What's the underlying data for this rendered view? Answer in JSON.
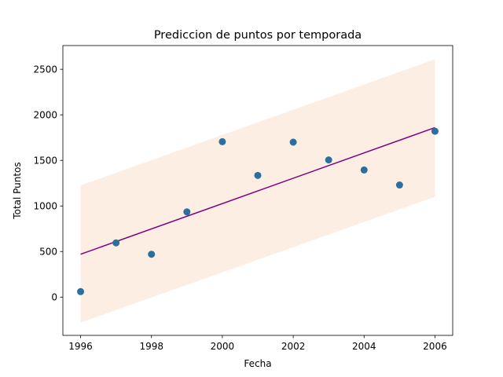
{
  "chart_data": {
    "type": "scatter",
    "title": "Prediccion de puntos por temporada",
    "xlabel": "Fecha",
    "ylabel": "Total Puntos",
    "xlim": [
      1995.5,
      2006.5
    ],
    "ylim": [
      -420,
      2760
    ],
    "xticks": [
      1996,
      1998,
      2000,
      2002,
      2004,
      2006
    ],
    "yticks": [
      0,
      500,
      1000,
      1500,
      2000,
      2500
    ],
    "grid": false,
    "colors": {
      "points": "#2a6f9e",
      "line": "#800080",
      "band": "#fdeee3"
    },
    "series": [
      {
        "name": "Total Puntos",
        "kind": "scatter",
        "x": [
          1996,
          1997,
          1998,
          1999,
          2000,
          2001,
          2002,
          2003,
          2004,
          2005,
          2006
        ],
        "y": [
          60,
          595,
          470,
          935,
          1705,
          1335,
          1700,
          1505,
          1395,
          1230,
          1820
        ]
      },
      {
        "name": "Prediccion",
        "kind": "line",
        "x": [
          1996,
          2006
        ],
        "y": [
          470,
          1860
        ]
      },
      {
        "name": "Intervalo",
        "kind": "band",
        "x": [
          1996,
          2006
        ],
        "lower": [
          -280,
          1100
        ],
        "upper": [
          1225,
          2610
        ]
      }
    ]
  }
}
